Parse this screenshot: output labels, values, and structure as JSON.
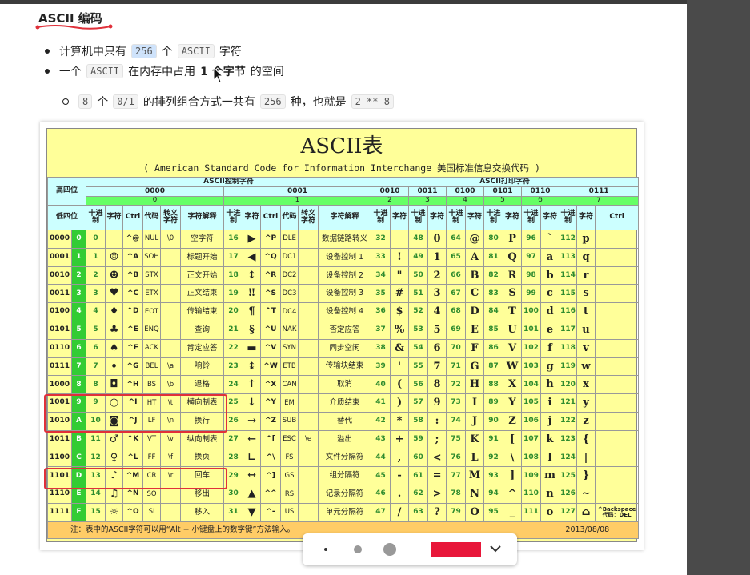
{
  "heading": "ASCII 编码",
  "bullets": [
    [
      {
        "t": "计算机中只有"
      },
      {
        "code": "256"
      },
      {
        "t": "个"
      },
      {
        "code": "ASCII"
      },
      {
        "t": "字符"
      }
    ],
    [
      {
        "t": "一个"
      },
      {
        "code": "ASCII"
      },
      {
        "t": "在内存中占用"
      },
      {
        "bold": "1 个字节"
      },
      {
        "t": "的空间"
      }
    ]
  ],
  "sub_bullet": [
    {
      "code": "8"
    },
    {
      "t": "个"
    },
    {
      "code": "0/1"
    },
    {
      "t": "的排列组合方式一共有"
    },
    {
      "code": "256"
    },
    {
      "t": "种，也就是"
    },
    {
      "code": "2 ** 8"
    }
  ],
  "table": {
    "title": "ASCII表",
    "subtitle": "( American Standard Code for Information Interchange  美国标准信息交换代码 )",
    "corner_high": "高四位",
    "corner_low": "低四位",
    "groups": [
      "ASCII控制字符",
      "ASCII打印字符"
    ],
    "high_bin": [
      "0000",
      "0001",
      "0010",
      "0011",
      "0100",
      "0101",
      "0110",
      "0111"
    ],
    "high_hex": [
      "0",
      "1",
      "2",
      "3",
      "4",
      "5",
      "6",
      "7"
    ],
    "columns": [
      "十进制",
      "字符",
      "Ctrl",
      "代码",
      "转义字符",
      "字符解释",
      "十进制",
      "字符",
      "Ctrl",
      "代码",
      "转义字符",
      "字符解释",
      "十进制",
      "字符",
      "十进制",
      "字符",
      "十进制",
      "字符",
      "十进制",
      "字符",
      "十进制",
      "字符",
      "十进制",
      "字符",
      "Ctrl"
    ],
    "rows": [
      [
        "0000",
        "0",
        0,
        null,
        "^@",
        "NUL",
        "\\0",
        "空字符",
        16,
        "▶",
        "^P",
        "DLE",
        null,
        "数据链路转义",
        32,
        null,
        48,
        "0",
        64,
        "@",
        80,
        "P",
        96,
        "`",
        112,
        "p",
        null
      ],
      [
        "0001",
        "1",
        1,
        "☺",
        "^A",
        "SOH",
        null,
        "标题开始",
        17,
        "◀",
        "^Q",
        "DC1",
        null,
        "设备控制 1",
        33,
        "!",
        49,
        "1",
        65,
        "A",
        81,
        "Q",
        97,
        "a",
        113,
        "q",
        null
      ],
      [
        "0010",
        "2",
        2,
        "☻",
        "^B",
        "STX",
        null,
        "正文开始",
        18,
        "↕",
        "^R",
        "DC2",
        null,
        "设备控制 2",
        34,
        "\"",
        50,
        "2",
        66,
        "B",
        82,
        "R",
        98,
        "b",
        114,
        "r",
        null
      ],
      [
        "0011",
        "3",
        3,
        "♥",
        "^C",
        "ETX",
        null,
        "正文结束",
        19,
        "‼",
        "^S",
        "DC3",
        null,
        "设备控制 3",
        35,
        "#",
        51,
        "3",
        67,
        "C",
        83,
        "S",
        99,
        "c",
        115,
        "s",
        null
      ],
      [
        "0100",
        "4",
        4,
        "♦",
        "^D",
        "EOT",
        null,
        "传输结束",
        20,
        "¶",
        "^T",
        "DC4",
        null,
        "设备控制 4",
        36,
        "$",
        52,
        "4",
        68,
        "D",
        84,
        "T",
        100,
        "d",
        116,
        "t",
        null
      ],
      [
        "0101",
        "5",
        5,
        "♣",
        "^E",
        "ENQ",
        null,
        "查询",
        21,
        "§",
        "^U",
        "NAK",
        null,
        "否定应答",
        37,
        "%",
        53,
        "5",
        69,
        "E",
        85,
        "U",
        101,
        "e",
        117,
        "u",
        null
      ],
      [
        "0110",
        "6",
        6,
        "♠",
        "^F",
        "ACK",
        null,
        "肯定应答",
        22,
        "▬",
        "^V",
        "SYN",
        null,
        "同步空闲",
        38,
        "&",
        54,
        "6",
        70,
        "F",
        86,
        "V",
        102,
        "f",
        118,
        "v",
        null
      ],
      [
        "0111",
        "7",
        7,
        "•",
        "^G",
        "BEL",
        "\\a",
        "响铃",
        23,
        "↨",
        "^W",
        "ETB",
        null,
        "传输块结束",
        39,
        "'",
        55,
        "7",
        71,
        "G",
        87,
        "W",
        103,
        "g",
        119,
        "w",
        null
      ],
      [
        "1000",
        "8",
        8,
        "◘",
        "^H",
        "BS",
        "\\b",
        "退格",
        24,
        "↑",
        "^X",
        "CAN",
        null,
        "取消",
        40,
        "(",
        56,
        "8",
        72,
        "H",
        88,
        "X",
        104,
        "h",
        120,
        "x",
        null
      ],
      [
        "1001",
        "9",
        9,
        "○",
        "^I",
        "HT",
        "\\t",
        "横向制表",
        25,
        "↓",
        "^Y",
        "EM",
        null,
        "介质结束",
        41,
        ")",
        57,
        "9",
        73,
        "I",
        89,
        "Y",
        105,
        "i",
        121,
        "y",
        null
      ],
      [
        "1010",
        "A",
        10,
        "◙",
        "^J",
        "LF",
        "\\n",
        "换行",
        26,
        "→",
        "^Z",
        "SUB",
        null,
        "替代",
        42,
        "*",
        58,
        ":",
        74,
        "J",
        90,
        "Z",
        106,
        "j",
        122,
        "z",
        null
      ],
      [
        "1011",
        "B",
        11,
        "♂",
        "^K",
        "VT",
        "\\v",
        "纵向制表",
        27,
        "←",
        "^[",
        "ESC",
        "\\e",
        "溢出",
        43,
        "+",
        59,
        ";",
        75,
        "K",
        91,
        "[",
        107,
        "k",
        123,
        "{",
        null
      ],
      [
        "1100",
        "C",
        12,
        "♀",
        "^L",
        "FF",
        "\\f",
        "换页",
        28,
        "∟",
        "^\\",
        "FS",
        null,
        "文件分隔符",
        44,
        ",",
        60,
        "<",
        76,
        "L",
        92,
        "\\",
        108,
        "l",
        124,
        "|",
        null
      ],
      [
        "1101",
        "D",
        13,
        "♪",
        "^M",
        "CR",
        "\\r",
        "回车",
        29,
        "↔",
        "^]",
        "GS",
        null,
        "组分隔符",
        45,
        "-",
        61,
        "=",
        77,
        "M",
        93,
        "]",
        109,
        "m",
        125,
        "}",
        null
      ],
      [
        "1110",
        "E",
        14,
        "♫",
        "^N",
        "SO",
        null,
        "移出",
        30,
        "▲",
        "^^",
        "RS",
        null,
        "记录分隔符",
        46,
        ".",
        62,
        ">",
        78,
        "N",
        94,
        "^",
        110,
        "n",
        126,
        "~",
        null
      ],
      [
        "1111",
        "F",
        15,
        "☼",
        "^O",
        "SI",
        null,
        "移入",
        31,
        "▼",
        "^-",
        "US",
        null,
        "单元分隔符",
        47,
        "/",
        63,
        "?",
        79,
        "O",
        95,
        "_",
        111,
        "o",
        127,
        "⌂",
        "^Backspace 代码：DEL"
      ]
    ],
    "note": "注：表中的ASCII字符可以用“Alt + 小键盘上的数字键”方法输入。",
    "date": "2013/08/08"
  }
}
